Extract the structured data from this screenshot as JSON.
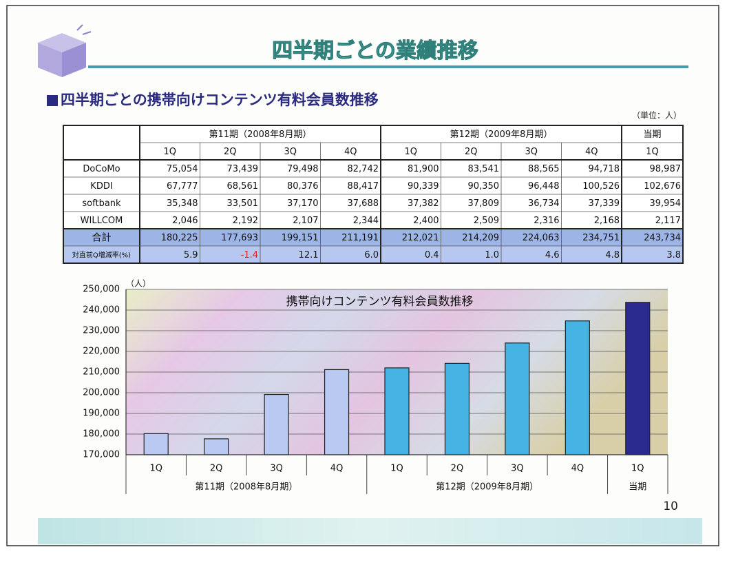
{
  "header": {
    "title": "四半期ごとの業績推移",
    "subtitle": "四半期ごとの携帯向けコンテンツ有料会員数推移",
    "unit": "（単位：人）"
  },
  "table": {
    "groups": [
      {
        "name": "第11期（2008年8月期）",
        "quarters": [
          "1Q",
          "2Q",
          "3Q",
          "4Q"
        ]
      },
      {
        "name": "第12期（2009年8月期）",
        "quarters": [
          "1Q",
          "2Q",
          "3Q",
          "4Q"
        ]
      },
      {
        "name": "当期",
        "quarters": [
          "1Q"
        ]
      }
    ],
    "rows": [
      {
        "label": "DoCoMo",
        "values": [
          "75,054",
          "73,439",
          "79,498",
          "82,742",
          "81,900",
          "83,541",
          "88,565",
          "94,718",
          "98,987"
        ]
      },
      {
        "label": "KDDI",
        "values": [
          "67,777",
          "68,561",
          "80,376",
          "88,417",
          "90,339",
          "90,350",
          "96,448",
          "100,526",
          "102,676"
        ]
      },
      {
        "label": "softbank",
        "values": [
          "35,348",
          "33,501",
          "37,170",
          "37,688",
          "37,382",
          "37,809",
          "36,734",
          "37,339",
          "39,954"
        ]
      },
      {
        "label": "WILLCOM",
        "values": [
          "2,046",
          "2,192",
          "2,107",
          "2,344",
          "2,400",
          "2,509",
          "2,316",
          "2,168",
          "2,117"
        ]
      },
      {
        "label": "合計",
        "values": [
          "180,225",
          "177,693",
          "199,151",
          "211,191",
          "212,021",
          "214,209",
          "224,063",
          "234,751",
          "243,734"
        ]
      },
      {
        "label": "対直前Q増減率(%)",
        "values": [
          "5.9",
          "-1.4",
          "12.1",
          "6.0",
          "0.4",
          "1.0",
          "4.6",
          "4.8",
          "3.8"
        ]
      }
    ]
  },
  "chart_data": {
    "type": "bar",
    "title": "携帯向けコンテンツ有料会員数推移",
    "y_label": "（人）",
    "groups": [
      {
        "name": "第11期（2008年8月期）",
        "categories": [
          "1Q",
          "2Q",
          "3Q",
          "4Q"
        ]
      },
      {
        "name": "第12期（2009年8月期）",
        "categories": [
          "1Q",
          "2Q",
          "3Q",
          "4Q"
        ]
      },
      {
        "name": "当期",
        "categories": [
          "1Q"
        ]
      }
    ],
    "values": [
      180225,
      177693,
      199151,
      211191,
      212021,
      214209,
      224063,
      234751,
      243734
    ],
    "colors": [
      "#b9c9f2",
      "#b9c9f2",
      "#b9c9f2",
      "#b9c9f2",
      "#45b4e4",
      "#45b4e4",
      "#45b4e4",
      "#45b4e4",
      "#2b2b8f"
    ],
    "ylim": [
      170000,
      250000
    ],
    "yticks": [
      {
        "value": 170000,
        "label": "170,000"
      },
      {
        "value": 180000,
        "label": "180,000"
      },
      {
        "value": 190000,
        "label": "190,000"
      },
      {
        "value": 200000,
        "label": "200,000"
      },
      {
        "value": 210000,
        "label": "210,000"
      },
      {
        "value": 220000,
        "label": "220,000"
      },
      {
        "value": 230000,
        "label": "230,000"
      },
      {
        "value": 240000,
        "label": "240,000"
      },
      {
        "value": 250000,
        "label": "250,000"
      }
    ],
    "grid": true
  },
  "footer": {
    "page": "10"
  }
}
